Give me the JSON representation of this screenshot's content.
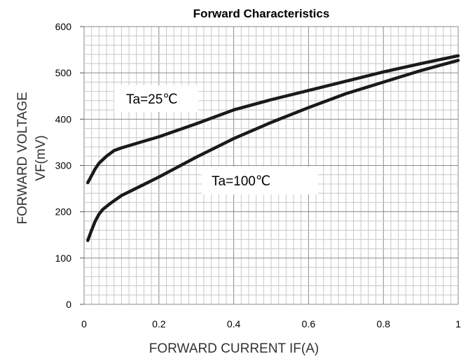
{
  "chart_data": {
    "type": "line",
    "title": "Forward Characteristics",
    "xlabel": "FORWARD CURRENT  IF(A)",
    "ylabel_line1": "FORWARD VOLTAGE",
    "ylabel_line2": "VF(mV)",
    "xlim": [
      0,
      1
    ],
    "ylim": [
      0,
      600
    ],
    "x_ticks": [
      "0",
      "0.2",
      "0.4",
      "0.6",
      "0.8",
      "1"
    ],
    "y_ticks": [
      "0",
      "100",
      "200",
      "300",
      "400",
      "500",
      "600"
    ],
    "grid": true,
    "series": [
      {
        "name": "Ta=25℃",
        "x": [
          0.01,
          0.02,
          0.03,
          0.04,
          0.06,
          0.08,
          0.1,
          0.15,
          0.2,
          0.3,
          0.4,
          0.5,
          0.6,
          0.7,
          0.8,
          0.9,
          1.0
        ],
        "y": [
          263,
          278,
          293,
          305,
          320,
          332,
          338,
          350,
          362,
          390,
          420,
          442,
          462,
          482,
          502,
          520,
          537
        ]
      },
      {
        "name": "Ta=100℃",
        "x": [
          0.01,
          0.02,
          0.03,
          0.04,
          0.05,
          0.07,
          0.1,
          0.15,
          0.2,
          0.3,
          0.4,
          0.5,
          0.6,
          0.7,
          0.8,
          0.9,
          1.0
        ],
        "y": [
          138,
          160,
          180,
          195,
          205,
          218,
          235,
          255,
          275,
          318,
          358,
          393,
          425,
          455,
          480,
          505,
          527
        ]
      }
    ],
    "annotations": [
      {
        "text": "Ta=25℃",
        "series": 0
      },
      {
        "text": "Ta=100℃",
        "series": 1
      }
    ]
  }
}
